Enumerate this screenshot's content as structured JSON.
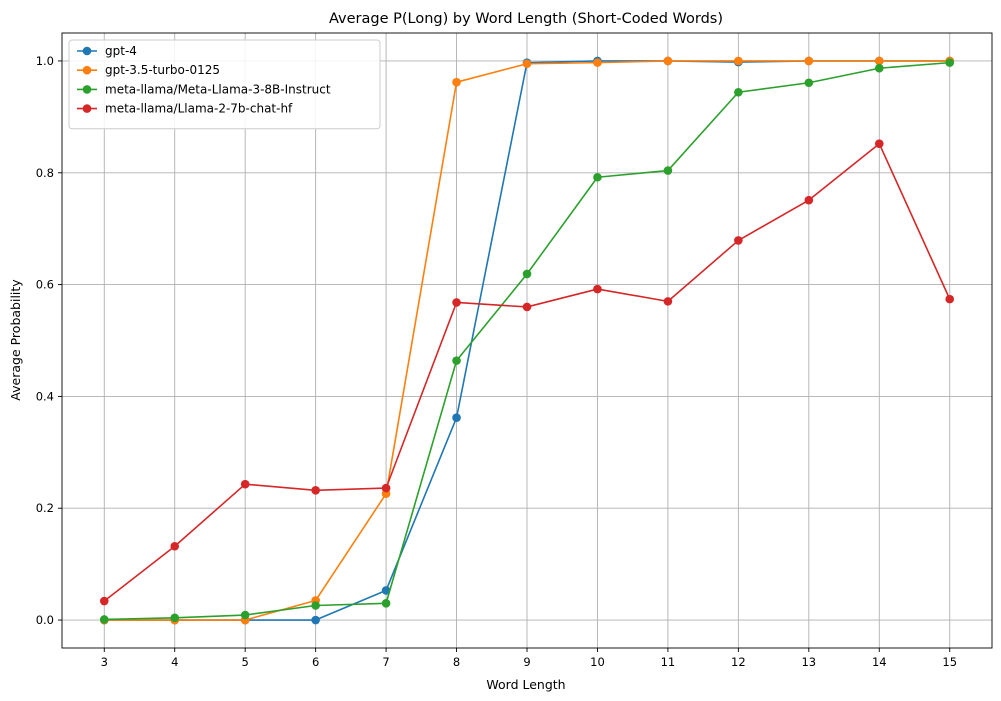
{
  "chart_data": {
    "type": "line",
    "title": "Average P(Long) by Word Length (Short-Coded Words)",
    "xlabel": "Word Length",
    "ylabel": "Average Probability",
    "x": [
      3,
      4,
      5,
      6,
      7,
      8,
      9,
      10,
      11,
      12,
      13,
      14,
      15
    ],
    "xlim": [
      2.4,
      15.6
    ],
    "ylim": [
      -0.05,
      1.05
    ],
    "xticks": [
      "3",
      "4",
      "5",
      "6",
      "7",
      "8",
      "9",
      "10",
      "11",
      "12",
      "13",
      "14",
      "15"
    ],
    "yticks": [
      0.0,
      0.2,
      0.4,
      0.6,
      0.8,
      1.0
    ],
    "ytick_labels": [
      "0.0",
      "0.2",
      "0.4",
      "0.6",
      "0.8",
      "1.0"
    ],
    "grid": true,
    "legend_position": "top-left",
    "marker": "circle",
    "series": [
      {
        "name": "gpt-4",
        "color": "#1f77b4",
        "values": [
          0.0,
          0.0,
          0.0,
          0.0,
          0.053,
          0.362,
          0.997,
          1.0,
          1.0,
          0.998,
          1.0,
          1.0,
          1.0
        ]
      },
      {
        "name": "gpt-3.5-turbo-0125",
        "color": "#ff7f0e",
        "values": [
          0.0,
          0.0,
          0.0,
          0.035,
          0.226,
          0.962,
          0.995,
          0.997,
          1.0,
          1.0,
          1.0,
          1.0,
          1.0
        ]
      },
      {
        "name": "meta-llama/Meta-Llama-3-8B-Instruct",
        "color": "#2ca02c",
        "values": [
          0.001,
          0.004,
          0.009,
          0.026,
          0.03,
          0.464,
          0.619,
          0.792,
          0.804,
          0.944,
          0.961,
          0.987,
          0.997
        ]
      },
      {
        "name": "meta-llama/Llama-2-7b-chat-hf",
        "color": "#d62728",
        "values": [
          0.034,
          0.132,
          0.243,
          0.232,
          0.236,
          0.568,
          0.56,
          0.592,
          0.57,
          0.679,
          0.751,
          0.852,
          0.574
        ]
      }
    ]
  }
}
